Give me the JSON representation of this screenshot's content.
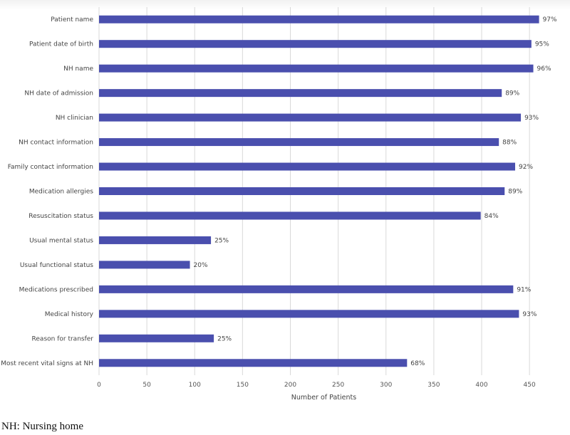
{
  "chart_data": {
    "type": "bar",
    "orientation": "horizontal",
    "categories": [
      "Patient name",
      "Patient date of birth",
      "NH name",
      "NH date of admission",
      "NH clinician",
      "NH contact information",
      "Family contact information",
      "Medication allergies",
      "Resuscitation status",
      "Usual mental status",
      "Usual functional status",
      "Medications prescribed",
      "Medical history",
      "Reason for transfer",
      "Most recent vital signs at NH"
    ],
    "values": [
      460,
      452,
      454,
      421,
      441,
      418,
      435,
      424,
      399,
      117,
      95,
      433,
      439,
      120,
      322
    ],
    "data_labels": [
      "97%",
      "95%",
      "96%",
      "89%",
      "93%",
      "88%",
      "92%",
      "89%",
      "84%",
      "25%",
      "20%",
      "91%",
      "93%",
      "25%",
      "68%"
    ],
    "xlabel": "Number of Patients",
    "ylabel": "",
    "title": "",
    "xlim": [
      0,
      470
    ],
    "xticks": [
      "0",
      "50",
      "100",
      "150",
      "200",
      "250",
      "300",
      "350",
      "400",
      "450"
    ],
    "grid": "vertical",
    "bar_color": "#4a4fae"
  },
  "footnote": "NH: Nursing home"
}
